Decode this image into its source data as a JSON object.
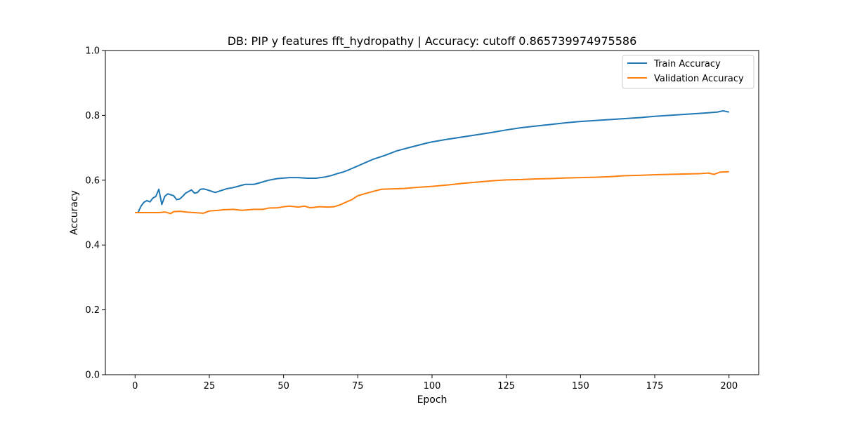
{
  "chart_data": {
    "type": "line",
    "title": "DB: PIP y features fft_hydropathy | Accuracy: cutoff 0.865739974975586",
    "xlabel": "Epoch",
    "ylabel": "Accuracy",
    "xlim": [
      -10,
      210
    ],
    "ylim": [
      0.0,
      1.0
    ],
    "xticks": [
      0,
      25,
      50,
      75,
      100,
      125,
      150,
      175,
      200
    ],
    "yticks": [
      0.0,
      0.2,
      0.4,
      0.6,
      0.8,
      1.0
    ],
    "xtick_labels": [
      "0",
      "25",
      "50",
      "75",
      "100",
      "125",
      "150",
      "175",
      "200"
    ],
    "ytick_labels": [
      "0.0",
      "0.2",
      "0.4",
      "0.6",
      "0.8",
      "1.0"
    ],
    "grid": false,
    "legend_position": "top-right",
    "series": [
      {
        "name": "Train Accuracy",
        "color": "#1f77b4",
        "keypoints": [
          [
            0,
            0.5
          ],
          [
            1,
            0.5
          ],
          [
            2,
            0.52
          ],
          [
            3,
            0.532
          ],
          [
            4,
            0.537
          ],
          [
            5,
            0.533
          ],
          [
            6,
            0.545
          ],
          [
            7,
            0.55
          ],
          [
            8,
            0.572
          ],
          [
            9,
            0.525
          ],
          [
            10,
            0.55
          ],
          [
            11,
            0.558
          ],
          [
            12,
            0.555
          ],
          [
            13,
            0.552
          ],
          [
            14,
            0.54
          ],
          [
            15,
            0.542
          ],
          [
            16,
            0.55
          ],
          [
            17,
            0.56
          ],
          [
            18,
            0.565
          ],
          [
            19,
            0.57
          ],
          [
            20,
            0.56
          ],
          [
            21,
            0.562
          ],
          [
            22,
            0.572
          ],
          [
            23,
            0.573
          ],
          [
            24,
            0.571
          ],
          [
            25,
            0.568
          ],
          [
            27,
            0.562
          ],
          [
            29,
            0.568
          ],
          [
            31,
            0.574
          ],
          [
            33,
            0.577
          ],
          [
            35,
            0.582
          ],
          [
            37,
            0.587
          ],
          [
            40,
            0.587
          ],
          [
            42,
            0.592
          ],
          [
            45,
            0.6
          ],
          [
            48,
            0.605
          ],
          [
            52,
            0.608
          ],
          [
            55,
            0.608
          ],
          [
            58,
            0.606
          ],
          [
            61,
            0.606
          ],
          [
            64,
            0.61
          ],
          [
            66,
            0.614
          ],
          [
            68,
            0.62
          ],
          [
            70,
            0.625
          ],
          [
            72,
            0.632
          ],
          [
            74,
            0.64
          ],
          [
            76,
            0.648
          ],
          [
            78,
            0.656
          ],
          [
            80,
            0.664
          ],
          [
            82,
            0.67
          ],
          [
            84,
            0.676
          ],
          [
            86,
            0.683
          ],
          [
            88,
            0.69
          ],
          [
            90,
            0.695
          ],
          [
            92,
            0.7
          ],
          [
            95,
            0.707
          ],
          [
            98,
            0.714
          ],
          [
            100,
            0.718
          ],
          [
            105,
            0.726
          ],
          [
            110,
            0.733
          ],
          [
            115,
            0.74
          ],
          [
            120,
            0.747
          ],
          [
            125,
            0.755
          ],
          [
            130,
            0.762
          ],
          [
            135,
            0.767
          ],
          [
            140,
            0.772
          ],
          [
            145,
            0.777
          ],
          [
            150,
            0.781
          ],
          [
            155,
            0.784
          ],
          [
            160,
            0.787
          ],
          [
            165,
            0.79
          ],
          [
            170,
            0.793
          ],
          [
            175,
            0.797
          ],
          [
            180,
            0.8
          ],
          [
            185,
            0.803
          ],
          [
            190,
            0.806
          ],
          [
            193,
            0.808
          ],
          [
            196,
            0.81
          ],
          [
            198,
            0.814
          ],
          [
            200,
            0.81
          ]
        ]
      },
      {
        "name": "Validation Accuracy",
        "color": "#ff7f0e",
        "keypoints": [
          [
            0,
            0.5
          ],
          [
            5,
            0.5
          ],
          [
            8,
            0.5
          ],
          [
            10,
            0.502
          ],
          [
            12,
            0.497
          ],
          [
            13,
            0.503
          ],
          [
            15,
            0.504
          ],
          [
            18,
            0.501
          ],
          [
            20,
            0.5
          ],
          [
            23,
            0.498
          ],
          [
            25,
            0.505
          ],
          [
            28,
            0.507
          ],
          [
            30,
            0.509
          ],
          [
            33,
            0.51
          ],
          [
            36,
            0.507
          ],
          [
            40,
            0.51
          ],
          [
            43,
            0.51
          ],
          [
            45,
            0.514
          ],
          [
            48,
            0.515
          ],
          [
            50,
            0.518
          ],
          [
            52,
            0.52
          ],
          [
            55,
            0.517
          ],
          [
            57,
            0.52
          ],
          [
            59,
            0.515
          ],
          [
            62,
            0.518
          ],
          [
            65,
            0.517
          ],
          [
            67,
            0.518
          ],
          [
            69,
            0.524
          ],
          [
            71,
            0.532
          ],
          [
            73,
            0.54
          ],
          [
            75,
            0.552
          ],
          [
            78,
            0.56
          ],
          [
            80,
            0.565
          ],
          [
            83,
            0.572
          ],
          [
            86,
            0.573
          ],
          [
            90,
            0.574
          ],
          [
            95,
            0.578
          ],
          [
            100,
            0.581
          ],
          [
            105,
            0.585
          ],
          [
            110,
            0.59
          ],
          [
            115,
            0.594
          ],
          [
            120,
            0.598
          ],
          [
            125,
            0.601
          ],
          [
            130,
            0.602
          ],
          [
            135,
            0.604
          ],
          [
            140,
            0.605
          ],
          [
            145,
            0.607
          ],
          [
            150,
            0.608
          ],
          [
            155,
            0.609
          ],
          [
            160,
            0.611
          ],
          [
            165,
            0.614
          ],
          [
            170,
            0.615
          ],
          [
            175,
            0.617
          ],
          [
            180,
            0.618
          ],
          [
            185,
            0.619
          ],
          [
            190,
            0.62
          ],
          [
            193,
            0.622
          ],
          [
            195,
            0.618
          ],
          [
            197,
            0.625
          ],
          [
            200,
            0.626
          ]
        ]
      }
    ]
  }
}
